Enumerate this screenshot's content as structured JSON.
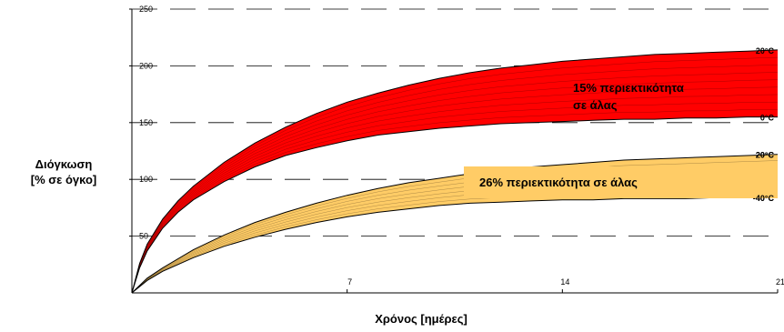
{
  "chart_data": {
    "type": "area",
    "title": "",
    "xlabel": "Χρόνος [ημέρες]",
    "ylabel_lines": [
      "Διόγκωση",
      "[% σε όγκο]"
    ],
    "xlim": [
      0,
      21
    ],
    "ylim": [
      0,
      250
    ],
    "x_ticks": [
      7,
      14,
      21
    ],
    "y_ticks": [
      50,
      100,
      150,
      200,
      250
    ],
    "y_gridlines": [
      50,
      100,
      150,
      200,
      250
    ],
    "grid_style": "dashed horizontal",
    "series": [
      {
        "label": "15% περιεκτικότητα σε άλας",
        "color": "#ff0000",
        "upper": {
          "label": "20°C",
          "x": [
            0,
            0.25,
            0.5,
            1,
            1.5,
            2,
            3,
            4,
            5,
            6,
            7,
            8,
            9,
            10,
            11,
            12,
            13,
            14,
            15,
            16,
            17,
            18,
            19,
            20,
            21
          ],
          "y": [
            0,
            26,
            43,
            65,
            81,
            94,
            115,
            132,
            146,
            158,
            168,
            176,
            183,
            189,
            194,
            198,
            201,
            204,
            206,
            208,
            210,
            211,
            212,
            213,
            214
          ]
        },
        "lower": {
          "label": "0°C",
          "x": [
            0,
            0.25,
            0.5,
            1,
            1.5,
            2,
            3,
            4,
            5,
            6,
            7,
            8,
            9,
            10,
            11,
            12,
            13,
            14,
            15,
            16,
            17,
            18,
            19,
            20,
            21
          ],
          "y": [
            0,
            22,
            37,
            57,
            71,
            82,
            98,
            111,
            121,
            128,
            134,
            139,
            142,
            145,
            147,
            149,
            150,
            151,
            152,
            153,
            153,
            154,
            154,
            155,
            155
          ]
        }
      },
      {
        "label": "26% περιεκτικότητα σε άλας",
        "color": "#ffcc66",
        "upper": {
          "label": "20°C",
          "x": [
            0,
            0.5,
            1,
            2,
            3,
            4,
            5,
            6,
            7,
            8,
            9,
            10,
            11,
            12,
            13,
            14,
            15,
            16,
            17,
            18,
            19,
            20,
            21
          ],
          "y": [
            0,
            13,
            22,
            38,
            51,
            62,
            71,
            79,
            86,
            92,
            97,
            101,
            105,
            108,
            111,
            113,
            115,
            117,
            118,
            119,
            120,
            121,
            122
          ]
        },
        "lower": {
          "label": "-40°C",
          "x": [
            0,
            0.5,
            1,
            2,
            3,
            4,
            5,
            6,
            7,
            8,
            9,
            10,
            11,
            12,
            13,
            14,
            15,
            16,
            17,
            18,
            19,
            20,
            21
          ],
          "y": [
            0,
            11,
            19,
            31,
            41,
            49,
            56,
            62,
            67,
            71,
            74,
            77,
            79,
            80,
            81,
            82,
            82,
            83,
            83,
            83,
            84,
            84,
            84
          ]
        }
      }
    ]
  }
}
